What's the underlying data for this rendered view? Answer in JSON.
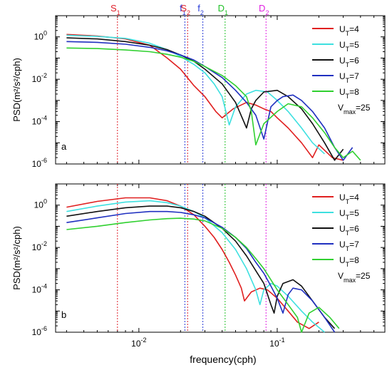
{
  "figure": {
    "xlabel": "frequency(cph)"
  },
  "frequency_markers": [
    {
      "label": "S",
      "sub": "1",
      "x": 0.007,
      "color": "#e0202a"
    },
    {
      "label": "f",
      "sub": "1",
      "x": 0.0215,
      "color": "#2a3cd8"
    },
    {
      "label": "S",
      "sub": "2",
      "x": 0.0225,
      "color": "#e0202a"
    },
    {
      "label": "f",
      "sub": "2",
      "x": 0.029,
      "color": "#2a3cd8"
    },
    {
      "label": "D",
      "sub": "1",
      "x": 0.042,
      "color": "#22c22a"
    },
    {
      "label": "D",
      "sub": "2",
      "x": 0.083,
      "color": "#e020e0"
    }
  ],
  "legend": {
    "series_prefix": "U",
    "series_sub": "T",
    "vmax_label": "V",
    "vmax_sub": "max",
    "vmax_value": "=25"
  },
  "chart_data": [
    {
      "type": "line",
      "panel_label": "a",
      "ylabel": "PSD(m²/s²/cph)",
      "xscale": "log",
      "yscale": "log",
      "xlim": [
        0.0025,
        0.6
      ],
      "ylim": [
        1e-06,
        10
      ],
      "series": [
        {
          "name": "=4",
          "color": "#e02020",
          "x": [
            0.003,
            0.005,
            0.008,
            0.012,
            0.016,
            0.02,
            0.025,
            0.03,
            0.036,
            0.04,
            0.048,
            0.06,
            0.07,
            0.08,
            0.09,
            0.1,
            0.12,
            0.15,
            0.18,
            0.2,
            0.25,
            0.3
          ],
          "y": [
            1.3,
            1.1,
            0.8,
            0.4,
            0.1,
            0.03,
            0.005,
            0.0015,
            0.0003,
            0.00015,
            0.0004,
            0.0008,
            0.0006,
            0.0004,
            0.0003,
            0.00015,
            5e-05,
            1e-05,
            2e-06,
            8e-06,
            2e-06,
            1.5e-06
          ]
        },
        {
          "name": "=5",
          "color": "#3ee0e0",
          "x": [
            0.003,
            0.005,
            0.008,
            0.012,
            0.016,
            0.02,
            0.025,
            0.03,
            0.035,
            0.04,
            0.045,
            0.05,
            0.06,
            0.07,
            0.085,
            0.1,
            0.12,
            0.15,
            0.18,
            0.22
          ],
          "y": [
            1.2,
            1.05,
            0.85,
            0.5,
            0.25,
            0.12,
            0.05,
            0.02,
            0.006,
            0.0015,
            7e-05,
            0.0005,
            0.002,
            0.003,
            0.0025,
            0.001,
            0.0003,
            5e-05,
            1e-05,
            3e-06
          ]
        },
        {
          "name": "=6",
          "color": "#111111",
          "x": [
            0.003,
            0.005,
            0.008,
            0.012,
            0.016,
            0.02,
            0.025,
            0.03,
            0.04,
            0.05,
            0.06,
            0.065,
            0.07,
            0.08,
            0.1,
            0.12,
            0.15,
            0.18,
            0.22,
            0.26,
            0.3
          ],
          "y": [
            0.9,
            0.8,
            0.6,
            0.4,
            0.25,
            0.14,
            0.07,
            0.03,
            0.006,
            0.0008,
            5e-05,
            0.0004,
            0.001,
            0.0025,
            0.003,
            0.0015,
            0.0004,
            8e-05,
            1e-05,
            1.5e-06,
            5e-06
          ]
        },
        {
          "name": "=7",
          "color": "#2030c0",
          "x": [
            0.003,
            0.005,
            0.008,
            0.012,
            0.016,
            0.02,
            0.025,
            0.03,
            0.04,
            0.05,
            0.06,
            0.07,
            0.08,
            0.09,
            0.1,
            0.11,
            0.13,
            0.15,
            0.18,
            0.22,
            0.26,
            0.3,
            0.35
          ],
          "y": [
            0.6,
            0.55,
            0.45,
            0.32,
            0.22,
            0.14,
            0.08,
            0.04,
            0.012,
            0.003,
            0.0008,
            0.0002,
            1.5e-05,
            0.0005,
            0.001,
            0.0015,
            0.0018,
            0.001,
            0.0003,
            5e-05,
            6e-06,
            1.5e-06,
            6e-06
          ]
        },
        {
          "name": "=8",
          "color": "#30d030",
          "x": [
            0.003,
            0.005,
            0.008,
            0.012,
            0.016,
            0.02,
            0.025,
            0.03,
            0.04,
            0.05,
            0.06,
            0.065,
            0.07,
            0.08,
            0.1,
            0.12,
            0.15,
            0.18,
            0.22,
            0.26,
            0.3,
            0.35,
            0.4
          ],
          "y": [
            0.3,
            0.28,
            0.24,
            0.2,
            0.15,
            0.11,
            0.07,
            0.04,
            0.015,
            0.005,
            0.0015,
            0.0003,
            8e-06,
            8e-05,
            0.0003,
            0.0007,
            0.0005,
            0.00015,
            3e-05,
            6e-06,
            2e-06,
            4e-06,
            1.5e-06
          ]
        }
      ]
    },
    {
      "type": "line",
      "panel_label": "b",
      "ylabel": "PSD(m²/s²/cph)",
      "xscale": "log",
      "yscale": "log",
      "xlim": [
        0.0025,
        0.6
      ],
      "ylim": [
        1e-06,
        10
      ],
      "series": [
        {
          "name": "=4",
          "color": "#e02020",
          "x": [
            0.003,
            0.005,
            0.008,
            0.012,
            0.016,
            0.02,
            0.025,
            0.03,
            0.035,
            0.04,
            0.045,
            0.05,
            0.055,
            0.058,
            0.065,
            0.075,
            0.085,
            0.1,
            0.12,
            0.14,
            0.17,
            0.2
          ],
          "y": [
            0.8,
            1.5,
            2.2,
            2.2,
            1.6,
            0.9,
            0.35,
            0.1,
            0.03,
            0.008,
            0.002,
            0.0005,
            0.00012,
            3e-05,
            8e-05,
            0.00012,
            0.0001,
            4e-05,
            1e-05,
            3e-06,
            1.5e-06,
            3e-06
          ]
        },
        {
          "name": "=5",
          "color": "#3ee0e0",
          "x": [
            0.003,
            0.005,
            0.008,
            0.012,
            0.016,
            0.02,
            0.025,
            0.03,
            0.04,
            0.05,
            0.06,
            0.07,
            0.075,
            0.08,
            0.09,
            0.1,
            0.12,
            0.15,
            0.18,
            0.22
          ],
          "y": [
            0.5,
            0.9,
            1.4,
            1.6,
            1.3,
            0.9,
            0.5,
            0.25,
            0.05,
            0.008,
            0.001,
            0.0001,
            2e-05,
            0.0001,
            0.0002,
            0.00015,
            5e-05,
            1e-05,
            3e-06,
            1e-06
          ]
        },
        {
          "name": "=6",
          "color": "#111111",
          "x": [
            0.003,
            0.005,
            0.008,
            0.012,
            0.016,
            0.02,
            0.025,
            0.03,
            0.04,
            0.05,
            0.06,
            0.07,
            0.08,
            0.09,
            0.095,
            0.1,
            0.11,
            0.13,
            0.15,
            0.18,
            0.22,
            0.26
          ],
          "y": [
            0.3,
            0.5,
            0.75,
            0.9,
            0.9,
            0.75,
            0.5,
            0.3,
            0.08,
            0.02,
            0.004,
            0.0008,
            0.0002,
            2e-05,
            8e-06,
            5e-05,
            0.0002,
            0.0003,
            0.00015,
            3e-05,
            5e-06,
            1.5e-06
          ]
        },
        {
          "name": "=7",
          "color": "#2030c0",
          "x": [
            0.003,
            0.005,
            0.008,
            0.012,
            0.016,
            0.02,
            0.025,
            0.03,
            0.04,
            0.05,
            0.06,
            0.07,
            0.08,
            0.09,
            0.1,
            0.11,
            0.12,
            0.13,
            0.15,
            0.18,
            0.22,
            0.26
          ],
          "y": [
            0.15,
            0.25,
            0.4,
            0.5,
            0.5,
            0.45,
            0.35,
            0.25,
            0.09,
            0.03,
            0.009,
            0.002,
            0.0006,
            0.00015,
            4e-05,
            8e-06,
            6e-05,
            0.00012,
            0.0001,
            3e-05,
            5e-06,
            1e-06
          ]
        },
        {
          "name": "=8",
          "color": "#30d030",
          "x": [
            0.003,
            0.005,
            0.008,
            0.012,
            0.016,
            0.02,
            0.025,
            0.03,
            0.04,
            0.05,
            0.06,
            0.07,
            0.08,
            0.1,
            0.12,
            0.14,
            0.15,
            0.17,
            0.2,
            0.24,
            0.28
          ],
          "y": [
            0.07,
            0.1,
            0.15,
            0.2,
            0.23,
            0.24,
            0.22,
            0.18,
            0.08,
            0.03,
            0.01,
            0.003,
            0.001,
            0.0001,
            2e-05,
            5e-06,
            1e-06,
            8e-06,
            1.5e-05,
            5e-06,
            1.5e-06
          ]
        }
      ]
    }
  ]
}
